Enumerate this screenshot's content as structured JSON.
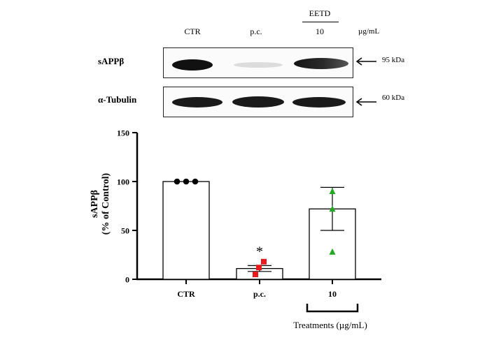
{
  "blot": {
    "header_group": "EETD",
    "lanes": [
      "CTR",
      "p.c.",
      "10"
    ],
    "unit": "µg/mL",
    "rows": [
      {
        "label": "sAPPβ",
        "kda": "95 kDa"
      },
      {
        "label": "α-Tubulin",
        "kda": "60 kDa"
      }
    ]
  },
  "chart_data": {
    "type": "bar",
    "categories": [
      "CTR",
      "p.c.",
      "10"
    ],
    "values": [
      100,
      11,
      72
    ],
    "error": [
      0,
      3,
      22
    ],
    "points": [
      [
        100,
        100,
        100
      ],
      [
        5,
        12,
        18
      ],
      [
        28,
        72,
        90
      ]
    ],
    "point_colors": [
      "#000000",
      "#e8191c",
      "#22a822"
    ],
    "point_shapes": [
      "circle",
      "square",
      "triangle"
    ],
    "annotations": [
      {
        "category": "p.c.",
        "text": "*"
      }
    ],
    "ylabel_line1": "sAPPβ",
    "ylabel_line2": "(% of Control)",
    "xlabel": "Treatments (µg/mL)",
    "ylim": [
      0,
      150
    ],
    "yticks": [
      0,
      50,
      100,
      150
    ]
  }
}
